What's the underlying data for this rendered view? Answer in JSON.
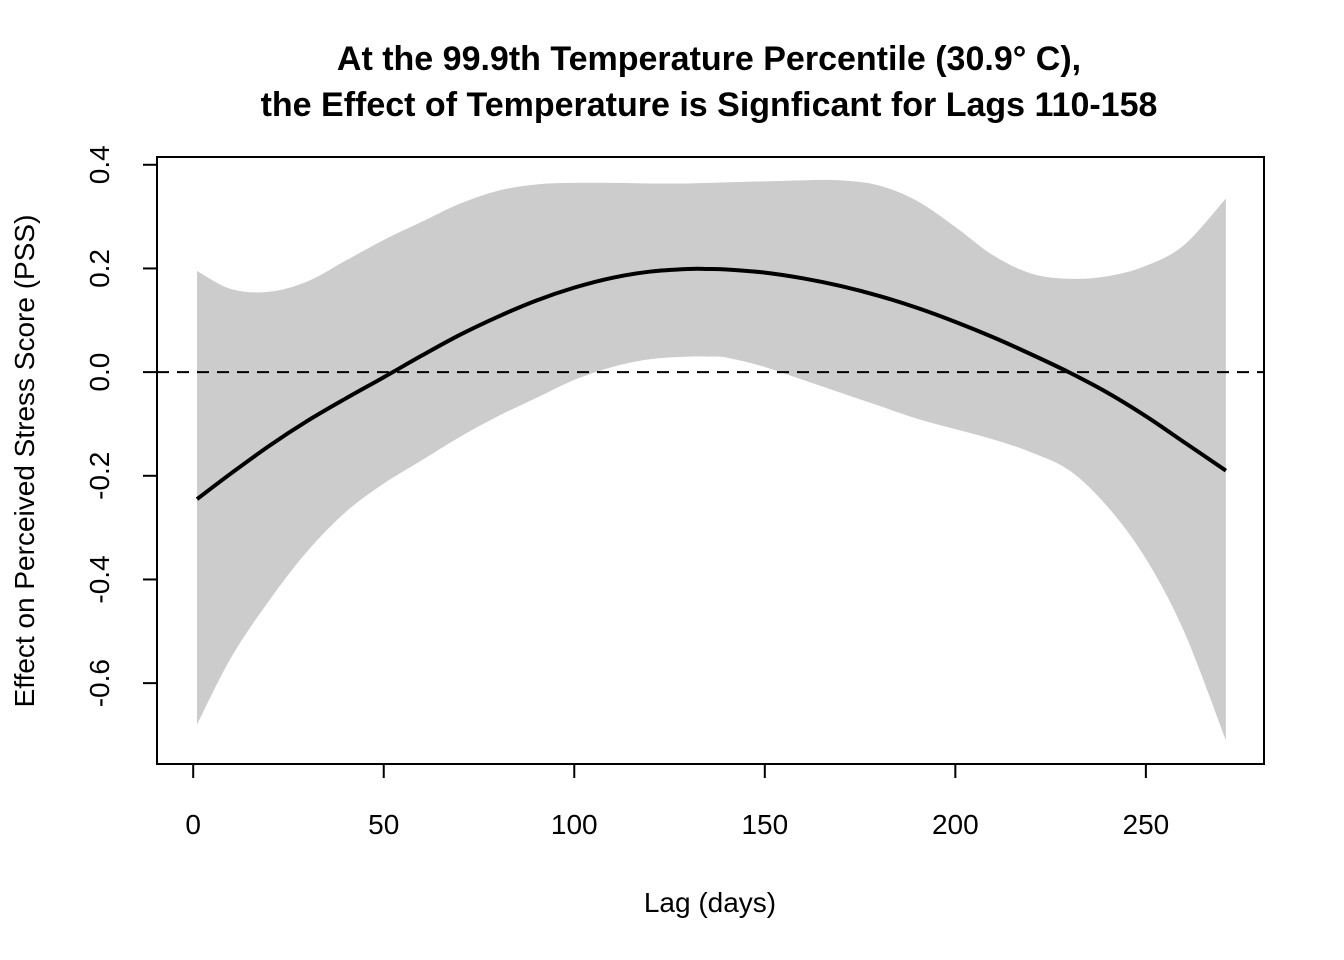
{
  "chart_data": {
    "type": "line",
    "title_line1": "At the 99.9th Temperature Percentile (30.9° C),",
    "title_line2": "the Effect of Temperature is Signficant for Lags 110-158",
    "xlabel": "Lag (days)",
    "ylabel": "Effect on Perceived Stress Score (PSS)",
    "xlim": [
      -9.5,
      281
    ],
    "ylim": [
      -0.756,
      0.415
    ],
    "x_ticks": [
      0,
      50,
      100,
      150,
      200,
      250
    ],
    "y_ticks": [
      -0.6,
      -0.4,
      -0.2,
      0.0,
      0.2,
      0.4
    ],
    "x_tick_labels": [
      "0",
      "50",
      "100",
      "150",
      "200",
      "250"
    ],
    "y_tick_labels": [
      "-0.6",
      "-0.4",
      "-0.2",
      "0.0",
      "0.2",
      "0.4"
    ],
    "reference_line": {
      "y": 0,
      "style": "dashed"
    },
    "colors": {
      "band": "#cccccc",
      "line": "#000000"
    },
    "series": [
      {
        "x": [
          1,
          10,
          20,
          30,
          40,
          50,
          60,
          70,
          80,
          90,
          100,
          110,
          120,
          130,
          135,
          140,
          150,
          160,
          170,
          180,
          190,
          200,
          210,
          220,
          230,
          240,
          250,
          260,
          271
        ],
        "estimate": [
          -0.245,
          -0.195,
          -0.142,
          -0.094,
          -0.051,
          -0.01,
          0.032,
          0.072,
          0.107,
          0.138,
          0.163,
          0.182,
          0.194,
          0.199,
          0.199,
          0.198,
          0.192,
          0.181,
          0.166,
          0.147,
          0.124,
          0.097,
          0.067,
          0.034,
          -0.001,
          -0.04,
          -0.085,
          -0.135,
          -0.19
        ],
        "lower": [
          -0.68,
          -0.55,
          -0.44,
          -0.345,
          -0.27,
          -0.215,
          -0.17,
          -0.125,
          -0.085,
          -0.05,
          -0.015,
          0.01,
          0.025,
          0.03,
          0.03,
          0.028,
          0.01,
          -0.015,
          -0.04,
          -0.065,
          -0.09,
          -0.11,
          -0.13,
          -0.155,
          -0.19,
          -0.26,
          -0.36,
          -0.5,
          -0.71
        ],
        "upper": [
          0.195,
          0.16,
          0.155,
          0.175,
          0.215,
          0.255,
          0.29,
          0.325,
          0.35,
          0.362,
          0.365,
          0.365,
          0.364,
          0.364,
          0.365,
          0.366,
          0.368,
          0.37,
          0.37,
          0.36,
          0.33,
          0.28,
          0.225,
          0.19,
          0.18,
          0.185,
          0.205,
          0.245,
          0.335
        ]
      }
    ]
  }
}
